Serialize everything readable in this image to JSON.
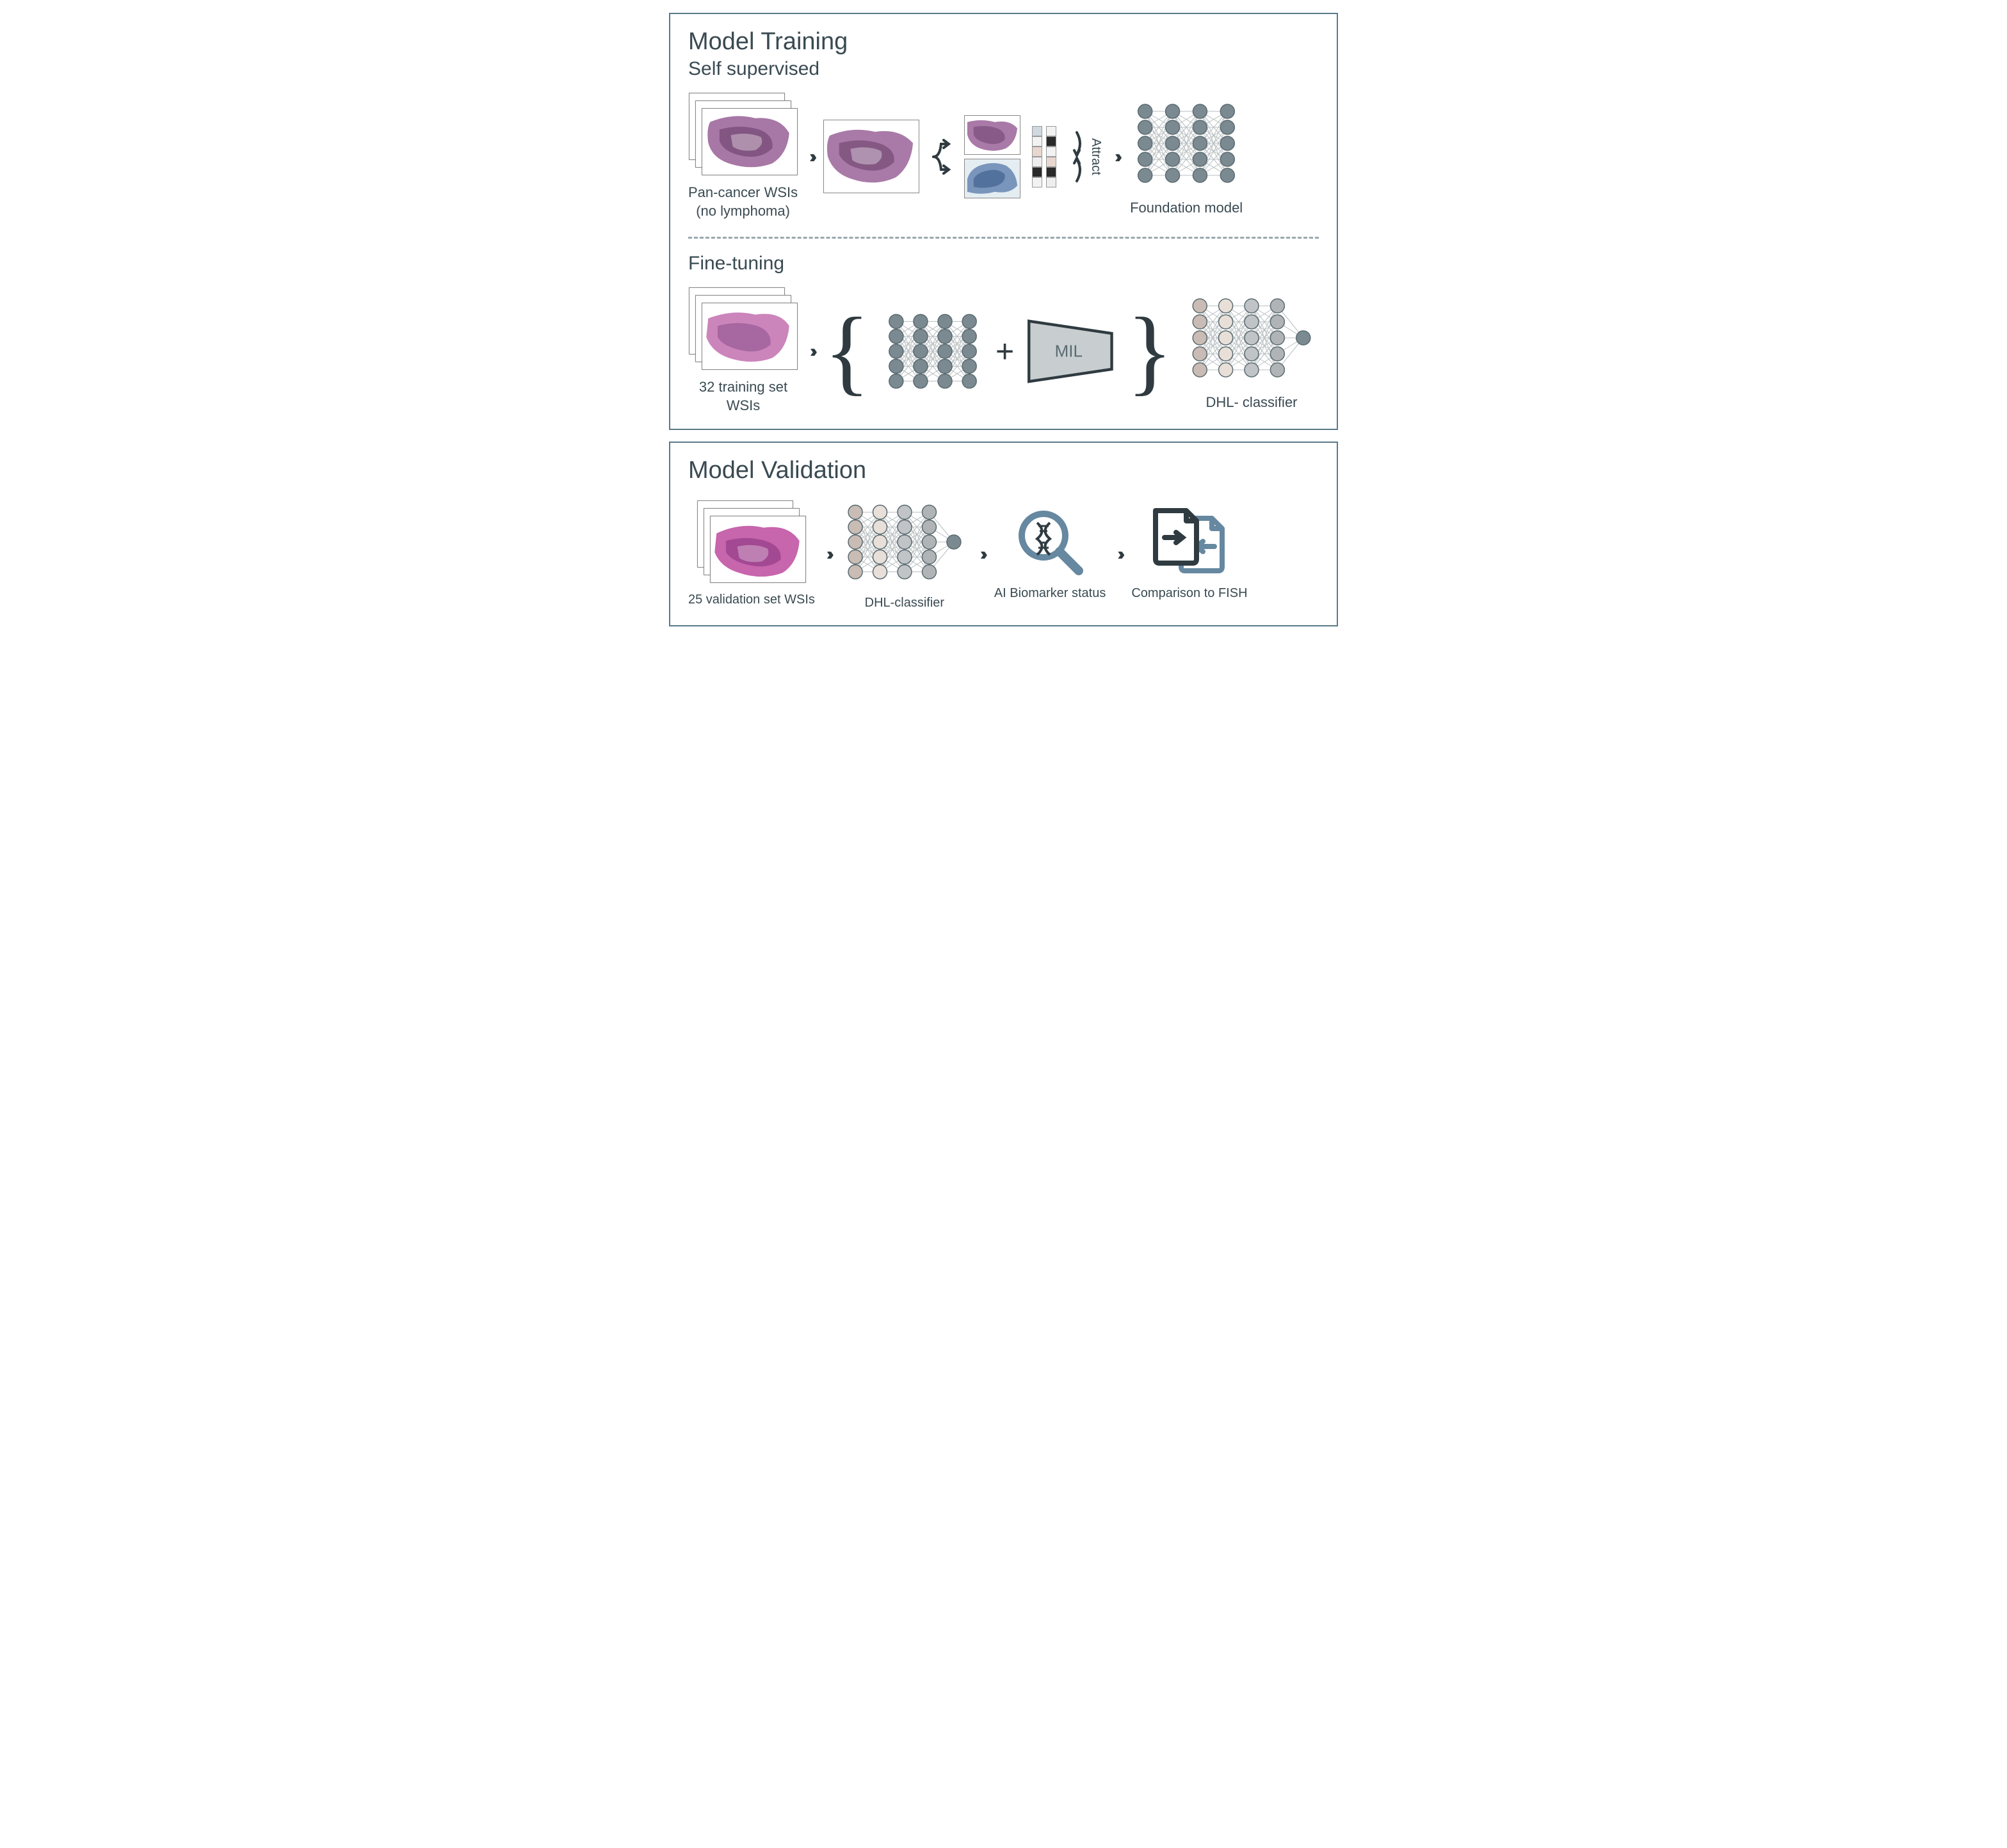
{
  "colors": {
    "border": "#5a7a88",
    "text": "#3a4a52",
    "dark": "#2f3b40",
    "tissue_purple": "#a06b9e",
    "tissue_pink": "#c77bb5",
    "tissue_dark": "#6b3f6b",
    "aug_blue": "#6d8bb5",
    "node_gray": "#7a8a90",
    "node_light": "#c9bcb4",
    "node_pale": "#e8e0d8",
    "node_gray2": "#b0b4b6",
    "mil_fill": "#c8ced0",
    "accent_blue": "#6688a0"
  },
  "training": {
    "title": "Model Training",
    "self_supervised": {
      "title": "Self supervised",
      "wsi_label": "Pan-cancer WSIs\n(no lymphoma)",
      "attract": "Attract",
      "foundation_label": "Foundation model",
      "embed_a": [
        "#cfd9df",
        "#f2f2f2",
        "#e8d7cf",
        "#eee",
        "#2a2a2a",
        "#f2f2f2"
      ],
      "embed_b": [
        "#f2f2f2",
        "#2a2a2a",
        "#f2f2f2",
        "#e8d7cf",
        "#2a2a2a",
        "#eee"
      ]
    },
    "fine_tuning": {
      "title": "Fine-tuning",
      "wsi_label": "32 training set WSIs",
      "mil": "MIL",
      "classifier_label": "DHL- classifier"
    }
  },
  "validation": {
    "title": "Model Validation",
    "wsi_label": "25 validation set WSIs",
    "classifier_label": "DHL-classifier",
    "biomarker_label": "AI Biomarker status",
    "compare_label": "Comparison to FISH"
  },
  "nn_foundation": {
    "layers": [
      5,
      5,
      5,
      5
    ],
    "color": "#7a8a90"
  },
  "nn_classifier": {
    "layers": [
      5,
      5,
      5,
      5,
      1
    ],
    "colors_by_layer": [
      "#c9bcb4",
      "#e8e0d8",
      "#c0c4c6",
      "#b0b4b6",
      "#7a8a90"
    ]
  }
}
